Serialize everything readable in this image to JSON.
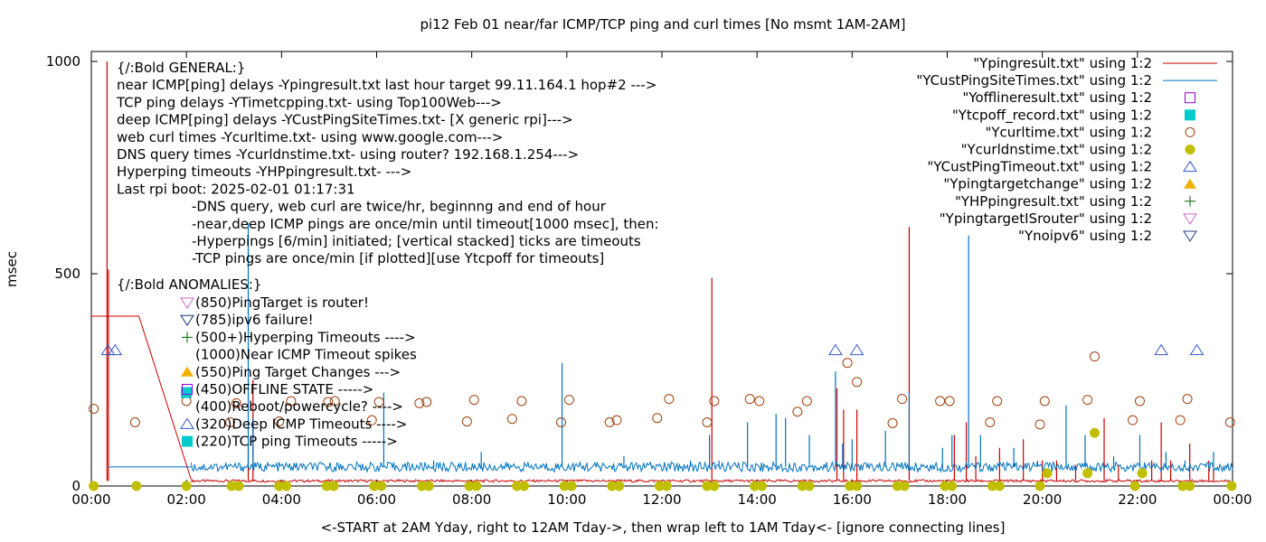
{
  "chart_data": {
    "type": "line",
    "title": "pi12 Feb 01  near/far ICMP/TCP ping and curl times [No msmt 1AM-2AM]",
    "xlabel": "<-START at 2AM Yday, right to 12AM Tday->, then wrap left to 1AM Tday<- [ignore connecting lines]",
    "ylabel": "msec",
    "xlim": [
      0,
      24
    ],
    "ylim": [
      0,
      2050
    ],
    "x_ticks": [
      "00:00",
      "02:00",
      "04:00",
      "06:00",
      "08:00",
      "10:00",
      "12:00",
      "14:00",
      "16:00",
      "18:00",
      "20:00",
      "22:00",
      "00:00"
    ],
    "y_ticks": [
      "0",
      "500",
      "1000",
      "1500",
      "2000"
    ],
    "grid": false,
    "legend_position": "top-right",
    "legend": [
      {
        "label": "\"Ypingresult.txt\" using 1:2",
        "marker": "line",
        "color": "#cc0000"
      },
      {
        "label": "\"YCustPingSiteTimes.txt\" using 1:2",
        "marker": "line",
        "color": "#0072bd"
      },
      {
        "label": "\"Yofflineresult.txt\" using 1:2",
        "marker": "open-square",
        "color": "#9400d3"
      },
      {
        "label": "\"Ytcpoff_record.txt\" using 1:2",
        "marker": "filled-square",
        "color": "#00cccc"
      },
      {
        "label": "\"Ycurltime.txt\" using 1:2",
        "marker": "open-circle",
        "color": "#a0400f"
      },
      {
        "label": "\"Ycurldnstime.txt\" using 1:2",
        "marker": "filled-circle",
        "color": "#bfbf00"
      },
      {
        "label": "\"YCustPingTimeout.txt\" using 1:2",
        "marker": "open-triangle-up",
        "color": "#3355cc"
      },
      {
        "label": "\"Ypingtargetchange\" using 1:2",
        "marker": "filled-triangle-up",
        "color": "#f0b000"
      },
      {
        "label": "\"YHPpingresult.txt\" using 1:2",
        "marker": "plus",
        "color": "#006400"
      },
      {
        "label": "\"YpingtargetISrouter\" using 1:2",
        "marker": "open-triangle-down",
        "color": "#cc66cc"
      },
      {
        "label": "\"Ynoipv6\" using 1:2",
        "marker": "open-triangle-down",
        "color": "#1f3d7a"
      }
    ],
    "info_lines": [
      "{/:Bold GENERAL:}",
      "near ICMP[ping] delays -Ypingresult.txt last hour target 99.11.164.1 hop#2 --->",
      "TCP ping delays -YTimetcpping.txt- using Top100Web--->",
      "deep ICMP[ping] delays -YCustPingSiteTimes.txt- [X generic rpi]--->",
      "web curl times -Ycurltime.txt- using www.google.com--->",
      "DNS query times -Ycurldnstime.txt- using router? 192.168.1.254--->",
      "Hyperping timeouts -YHPpingresult.txt- --->",
      "Last rpi boot: 2025-02-01 01:17:31"
    ],
    "info_notes": [
      "-DNS query, web curl are twice/hr, beginnng and end of hour",
      "-near,deep ICMP pings are once/min until timeout[1000 msec], then:",
      "  -Hyperpings [6/min] initiated; [vertical stacked] ticks are timeouts",
      "-TCP pings are once/min [if plotted][use Ytcpoff for timeouts]"
    ],
    "anomalies_title": "{/:Bold ANOMALIES:}",
    "anomalies": [
      {
        "text": "(850)PingTarget is router!",
        "marker": "open-triangle-down",
        "color": "#cc66cc"
      },
      {
        "text": "(785)ipv6 failure!",
        "marker": "open-triangle-down",
        "color": "#1f3d7a"
      },
      {
        "text": "(500+)Hyperping Timeouts ---->",
        "marker": "plus",
        "color": "#006400"
      },
      {
        "text": "(1000)Near ICMP Timeout spikes",
        "marker": "none",
        "color": ""
      },
      {
        "text": "(550)Ping Target Changes --->",
        "marker": "filled-triangle-up",
        "color": "#f0b000"
      },
      {
        "text": "(450)OFFLINE STATE ----->",
        "marker": "open-square",
        "color": "#9400d3"
      },
      {
        "text": "(400)Reboot/powercycle? ---->",
        "marker": "none",
        "color": ""
      },
      {
        "text": "(320)Deep ICMP Timeouts ---->",
        "marker": "open-triangle-up",
        "color": "#3355cc"
      },
      {
        "text": "(220)TCP ping Timeouts ----->",
        "marker": "filled-square",
        "color": "#00cccc"
      }
    ],
    "series": [
      {
        "name": "\"Ypingresult.txt\" using 1:2",
        "color": "#cc0000",
        "baseline": 12,
        "segment": {
          "x": [
            0,
            0.05,
            1.0,
            2.1
          ],
          "y": [
            400,
            400,
            400,
            15
          ]
        },
        "spikes": [
          [
            0.33,
            1000
          ],
          [
            0.36,
            510
          ],
          [
            3.3,
            100
          ],
          [
            3.4,
            250
          ],
          [
            13.05,
            490
          ],
          [
            15.68,
            230
          ],
          [
            15.82,
            180
          ],
          [
            16.1,
            180
          ],
          [
            17.2,
            610
          ],
          [
            18.15,
            120
          ],
          [
            18.4,
            150
          ],
          [
            18.6,
            70
          ],
          [
            19.1,
            90
          ],
          [
            19.6,
            110
          ],
          [
            20.0,
            60
          ],
          [
            20.3,
            60
          ],
          [
            20.7,
            50
          ],
          [
            21.3,
            160
          ],
          [
            21.6,
            50
          ],
          [
            22.3,
            60
          ],
          [
            22.5,
            150
          ],
          [
            22.7,
            60
          ],
          [
            23.1,
            100
          ],
          [
            23.5,
            60
          ],
          [
            23.6,
            40
          ]
        ]
      },
      {
        "name": "\"YCustPingSiteTimes.txt\" using 1:2",
        "color": "#0072bd",
        "baseline": 45,
        "segment": {
          "x": [
            0.35,
            2.1
          ],
          "y": [
            45,
            45
          ]
        },
        "spikes": [
          [
            3.3,
            620
          ],
          [
            3.4,
            160
          ],
          [
            6.15,
            220
          ],
          [
            7.2,
            60
          ],
          [
            8.2,
            80
          ],
          [
            9.9,
            290
          ],
          [
            11.2,
            70
          ],
          [
            12.6,
            60
          ],
          [
            13.0,
            120
          ],
          [
            13.2,
            60
          ],
          [
            13.8,
            150
          ],
          [
            14.4,
            170
          ],
          [
            14.6,
            160
          ],
          [
            15.1,
            120
          ],
          [
            15.65,
            270
          ],
          [
            15.8,
            100
          ],
          [
            16.0,
            110
          ],
          [
            16.7,
            130
          ],
          [
            17.2,
            220
          ],
          [
            17.9,
            90
          ],
          [
            18.1,
            120
          ],
          [
            18.45,
            590
          ],
          [
            18.7,
            120
          ],
          [
            19.4,
            90
          ],
          [
            19.9,
            60
          ],
          [
            20.5,
            190
          ],
          [
            20.9,
            120
          ],
          [
            21.5,
            70
          ],
          [
            22.05,
            120
          ],
          [
            22.6,
            80
          ],
          [
            23.0,
            60
          ],
          [
            23.6,
            80
          ]
        ]
      },
      {
        "name": "\"Ycurltime.txt\" using 1:2",
        "color": "#a0400f",
        "marker": "open-circle",
        "points": [
          [
            0.05,
            182
          ],
          [
            0.92,
            150
          ],
          [
            2.0,
            200
          ],
          [
            2.92,
            150
          ],
          [
            3.05,
            195
          ],
          [
            3.95,
            152
          ],
          [
            4.2,
            200
          ],
          [
            4.98,
            198
          ],
          [
            5.12,
            200
          ],
          [
            5.9,
            155
          ],
          [
            6.05,
            198
          ],
          [
            6.9,
            195
          ],
          [
            7.05,
            198
          ],
          [
            7.9,
            152
          ],
          [
            8.05,
            203
          ],
          [
            8.85,
            158
          ],
          [
            9.05,
            200
          ],
          [
            9.88,
            150
          ],
          [
            10.05,
            203
          ],
          [
            10.9,
            150
          ],
          [
            11.05,
            155
          ],
          [
            11.9,
            160
          ],
          [
            12.15,
            205
          ],
          [
            12.95,
            150
          ],
          [
            13.1,
            200
          ],
          [
            13.85,
            205
          ],
          [
            14.05,
            200
          ],
          [
            14.85,
            175
          ],
          [
            15.05,
            200
          ],
          [
            15.9,
            290
          ],
          [
            16.1,
            245
          ],
          [
            16.85,
            148
          ],
          [
            17.05,
            205
          ],
          [
            17.85,
            200
          ],
          [
            18.05,
            200
          ],
          [
            18.9,
            150
          ],
          [
            19.05,
            200
          ],
          [
            19.95,
            145
          ],
          [
            20.05,
            200
          ],
          [
            20.95,
            203
          ],
          [
            21.1,
            305
          ],
          [
            21.9,
            155
          ],
          [
            22.05,
            200
          ],
          [
            22.9,
            155
          ],
          [
            23.05,
            205
          ],
          [
            23.95,
            150
          ]
        ]
      },
      {
        "name": "\"Ycurldnstime.txt\" using 1:2",
        "color": "#bfbf00",
        "marker": "filled-circle",
        "points": [
          [
            0.05,
            0
          ],
          [
            0.95,
            0
          ],
          [
            2.0,
            0
          ],
          [
            2.95,
            0
          ],
          [
            3.1,
            0
          ],
          [
            3.95,
            0
          ],
          [
            4.1,
            0
          ],
          [
            4.95,
            0
          ],
          [
            5.1,
            0
          ],
          [
            5.95,
            0
          ],
          [
            6.1,
            0
          ],
          [
            6.95,
            0
          ],
          [
            7.1,
            0
          ],
          [
            7.95,
            0
          ],
          [
            8.1,
            0
          ],
          [
            8.95,
            0
          ],
          [
            9.1,
            0
          ],
          [
            9.95,
            0
          ],
          [
            10.1,
            0
          ],
          [
            10.95,
            0
          ],
          [
            11.1,
            0
          ],
          [
            11.95,
            0
          ],
          [
            12.1,
            0
          ],
          [
            12.95,
            0
          ],
          [
            13.1,
            0
          ],
          [
            13.95,
            0
          ],
          [
            14.1,
            0
          ],
          [
            14.95,
            0
          ],
          [
            15.1,
            0
          ],
          [
            15.95,
            0
          ],
          [
            16.1,
            0
          ],
          [
            16.95,
            0
          ],
          [
            17.1,
            0
          ],
          [
            17.95,
            0
          ],
          [
            18.1,
            0
          ],
          [
            18.95,
            0
          ],
          [
            19.1,
            0
          ],
          [
            19.95,
            0
          ],
          [
            20.1,
            30
          ],
          [
            20.95,
            30
          ],
          [
            21.1,
            125
          ],
          [
            21.95,
            0
          ],
          [
            22.1,
            30
          ],
          [
            22.95,
            0
          ],
          [
            23.1,
            0
          ],
          [
            23.98,
            0
          ]
        ]
      },
      {
        "name": "\"YCustPingTimeout.txt\" using 1:2",
        "color": "#3355cc",
        "marker": "open-triangle-up",
        "points": [
          [
            0.35,
            320
          ],
          [
            0.5,
            320
          ],
          [
            15.65,
            320
          ],
          [
            16.1,
            320
          ],
          [
            22.5,
            320
          ],
          [
            23.25,
            320
          ]
        ]
      },
      {
        "name": "\"Ytcpoff_record.txt\" using 1:2",
        "color": "#00cccc",
        "marker": "filled-square",
        "points": [
          [
            2.0,
            220
          ]
        ]
      }
    ]
  }
}
